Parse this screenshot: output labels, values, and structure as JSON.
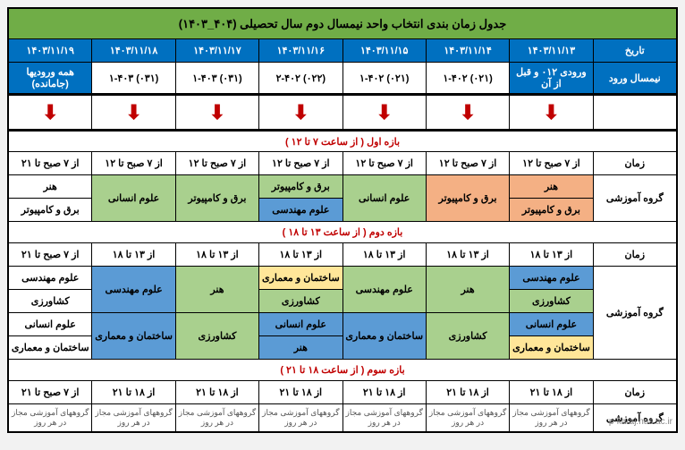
{
  "title": "جدول زمان بندی انتخاب واحد نیمسال دوم سال تحصیلی (۴۰۴_۱۴۰۳)",
  "colHeaders": {
    "date": "تاریخ",
    "entry": "نیمسال ورود"
  },
  "dates": [
    "۱۴۰۳/۱۱/۱۳",
    "۱۴۰۳/۱۱/۱۴",
    "۱۴۰۳/۱۱/۱۵",
    "۱۴۰۳/۱۱/۱۶",
    "۱۴۰۳/۱۱/۱۷",
    "۱۴۰۳/۱۱/۱۸",
    "۱۴۰۳/۱۱/۱۹"
  ],
  "entries": [
    "ورودی ۰۱۲ و قبل از آن",
    "(۰۲۱) ۱-۴۰۲",
    "(۰۲۱) ۱-۴۰۲",
    "(۰۲۲) ۲-۴۰۲",
    "(۰۳۱) ۱-۴۰۳",
    "(۰۳۱) ۱-۴۰۳",
    "همه ورودیها (جامانده)"
  ],
  "rowLabels": {
    "time": "زمان",
    "group": "گروه آموزشی"
  },
  "band1": {
    "header": "بازه اول ( از ساعت ۷ تا ۱۲ )",
    "times": [
      "از ۷ صبح تا ۱۲",
      "از ۷ صبح تا ۱۲",
      "از ۷ صبح تا ۱۲",
      "از ۷ صبح تا ۱۲",
      "از ۷ صبح تا ۱۲",
      "از ۷ صبح تا ۱۲",
      "از ۷ صبح تا ۲۱"
    ],
    "r1": [
      {
        "t": "هنر",
        "c": "c-orange"
      },
      {
        "t": "برق و کامپیوتر",
        "c": "c-orange",
        "rs": 2
      },
      {
        "t": "علوم انسانی",
        "c": "c-green",
        "rs": 2
      },
      {
        "t": "برق و کامپیوتر",
        "c": "c-green"
      },
      {
        "t": "برق و کامپیوتر",
        "c": "c-green",
        "rs": 2
      },
      {
        "t": "علوم انسانی",
        "c": "c-green",
        "rs": 2
      },
      {
        "t": "هنر",
        "c": "c-white"
      }
    ],
    "r2": [
      {
        "t": "برق و کامپیوتر",
        "c": "c-orange"
      },
      null,
      null,
      {
        "t": "علوم مهندسی",
        "c": "c-cyan"
      },
      null,
      null,
      {
        "t": "برق و کامپیوتر",
        "c": "c-white"
      }
    ]
  },
  "band2": {
    "header": "بازه دوم ( از ساعت ۱۳ تا ۱۸ )",
    "times": [
      "از ۱۳ تا ۱۸",
      "از ۱۳ تا ۱۸",
      "از ۱۳ تا ۱۸",
      "از ۱۳ تا ۱۸",
      "از ۱۳ تا ۱۸",
      "از ۱۳ تا ۱۸",
      "از ۷ صبح تا ۲۱"
    ],
    "rows": [
      [
        {
          "t": "علوم مهندسی",
          "c": "c-cyan"
        },
        {
          "t": "هنر",
          "c": "c-green",
          "rs": 2
        },
        {
          "t": "علوم مهندسی",
          "c": "c-green",
          "rs": 2
        },
        {
          "t": "ساختمان و معماری",
          "c": "c-yellow"
        },
        {
          "t": "هنر",
          "c": "c-green",
          "rs": 2
        },
        {
          "t": "علوم مهندسی",
          "c": "c-cyan",
          "rs": 2
        },
        {
          "t": "علوم مهندسی",
          "c": "c-white"
        }
      ],
      [
        {
          "t": "کشاورزی",
          "c": "c-green"
        },
        null,
        null,
        {
          "t": "کشاورزی",
          "c": "c-green"
        },
        null,
        null,
        {
          "t": "کشاورزی",
          "c": "c-white"
        }
      ],
      [
        {
          "t": "علوم انسانی",
          "c": "c-cyan"
        },
        {
          "t": "کشاورزی",
          "c": "c-green",
          "rs": 2
        },
        {
          "t": "ساختمان و معماری",
          "c": "c-cyan",
          "rs": 2
        },
        {
          "t": "علوم انسانی",
          "c": "c-cyan"
        },
        {
          "t": "کشاورزی",
          "c": "c-green",
          "rs": 2
        },
        {
          "t": "ساختمان و معماری",
          "c": "c-cyan",
          "rs": 2
        },
        {
          "t": "علوم انسانی",
          "c": "c-white"
        }
      ],
      [
        {
          "t": "ساختمان و معماری",
          "c": "c-yellow"
        },
        null,
        null,
        {
          "t": "هنر",
          "c": "c-cyan"
        },
        null,
        null,
        {
          "t": "ساختمان و معماری",
          "c": "c-white"
        }
      ]
    ]
  },
  "band3": {
    "header": "بازه سوم ( از ساعت ۱۸ تا ۲۱ )",
    "times": [
      "از ۱۸ تا ۲۱",
      "از ۱۸ تا ۲۱",
      "از ۱۸ تا ۲۱",
      "از ۱۸ تا ۲۱",
      "از ۱۸ تا ۲۱",
      "از ۱۸ تا ۲۱",
      "از ۷ صبح تا ۲۱"
    ],
    "footer": "گروههای آموزشی مجاز در هر روز"
  },
  "watermark": "p-karaj.nus.ac.ir",
  "colors": {
    "titleBg": "#70ad47",
    "headerBg": "#0070c0",
    "arrow": "#c00000",
    "green": "#a9d08e",
    "orange": "#f4b084",
    "cyan": "#5b9bd5",
    "yellow": "#ffe699"
  }
}
